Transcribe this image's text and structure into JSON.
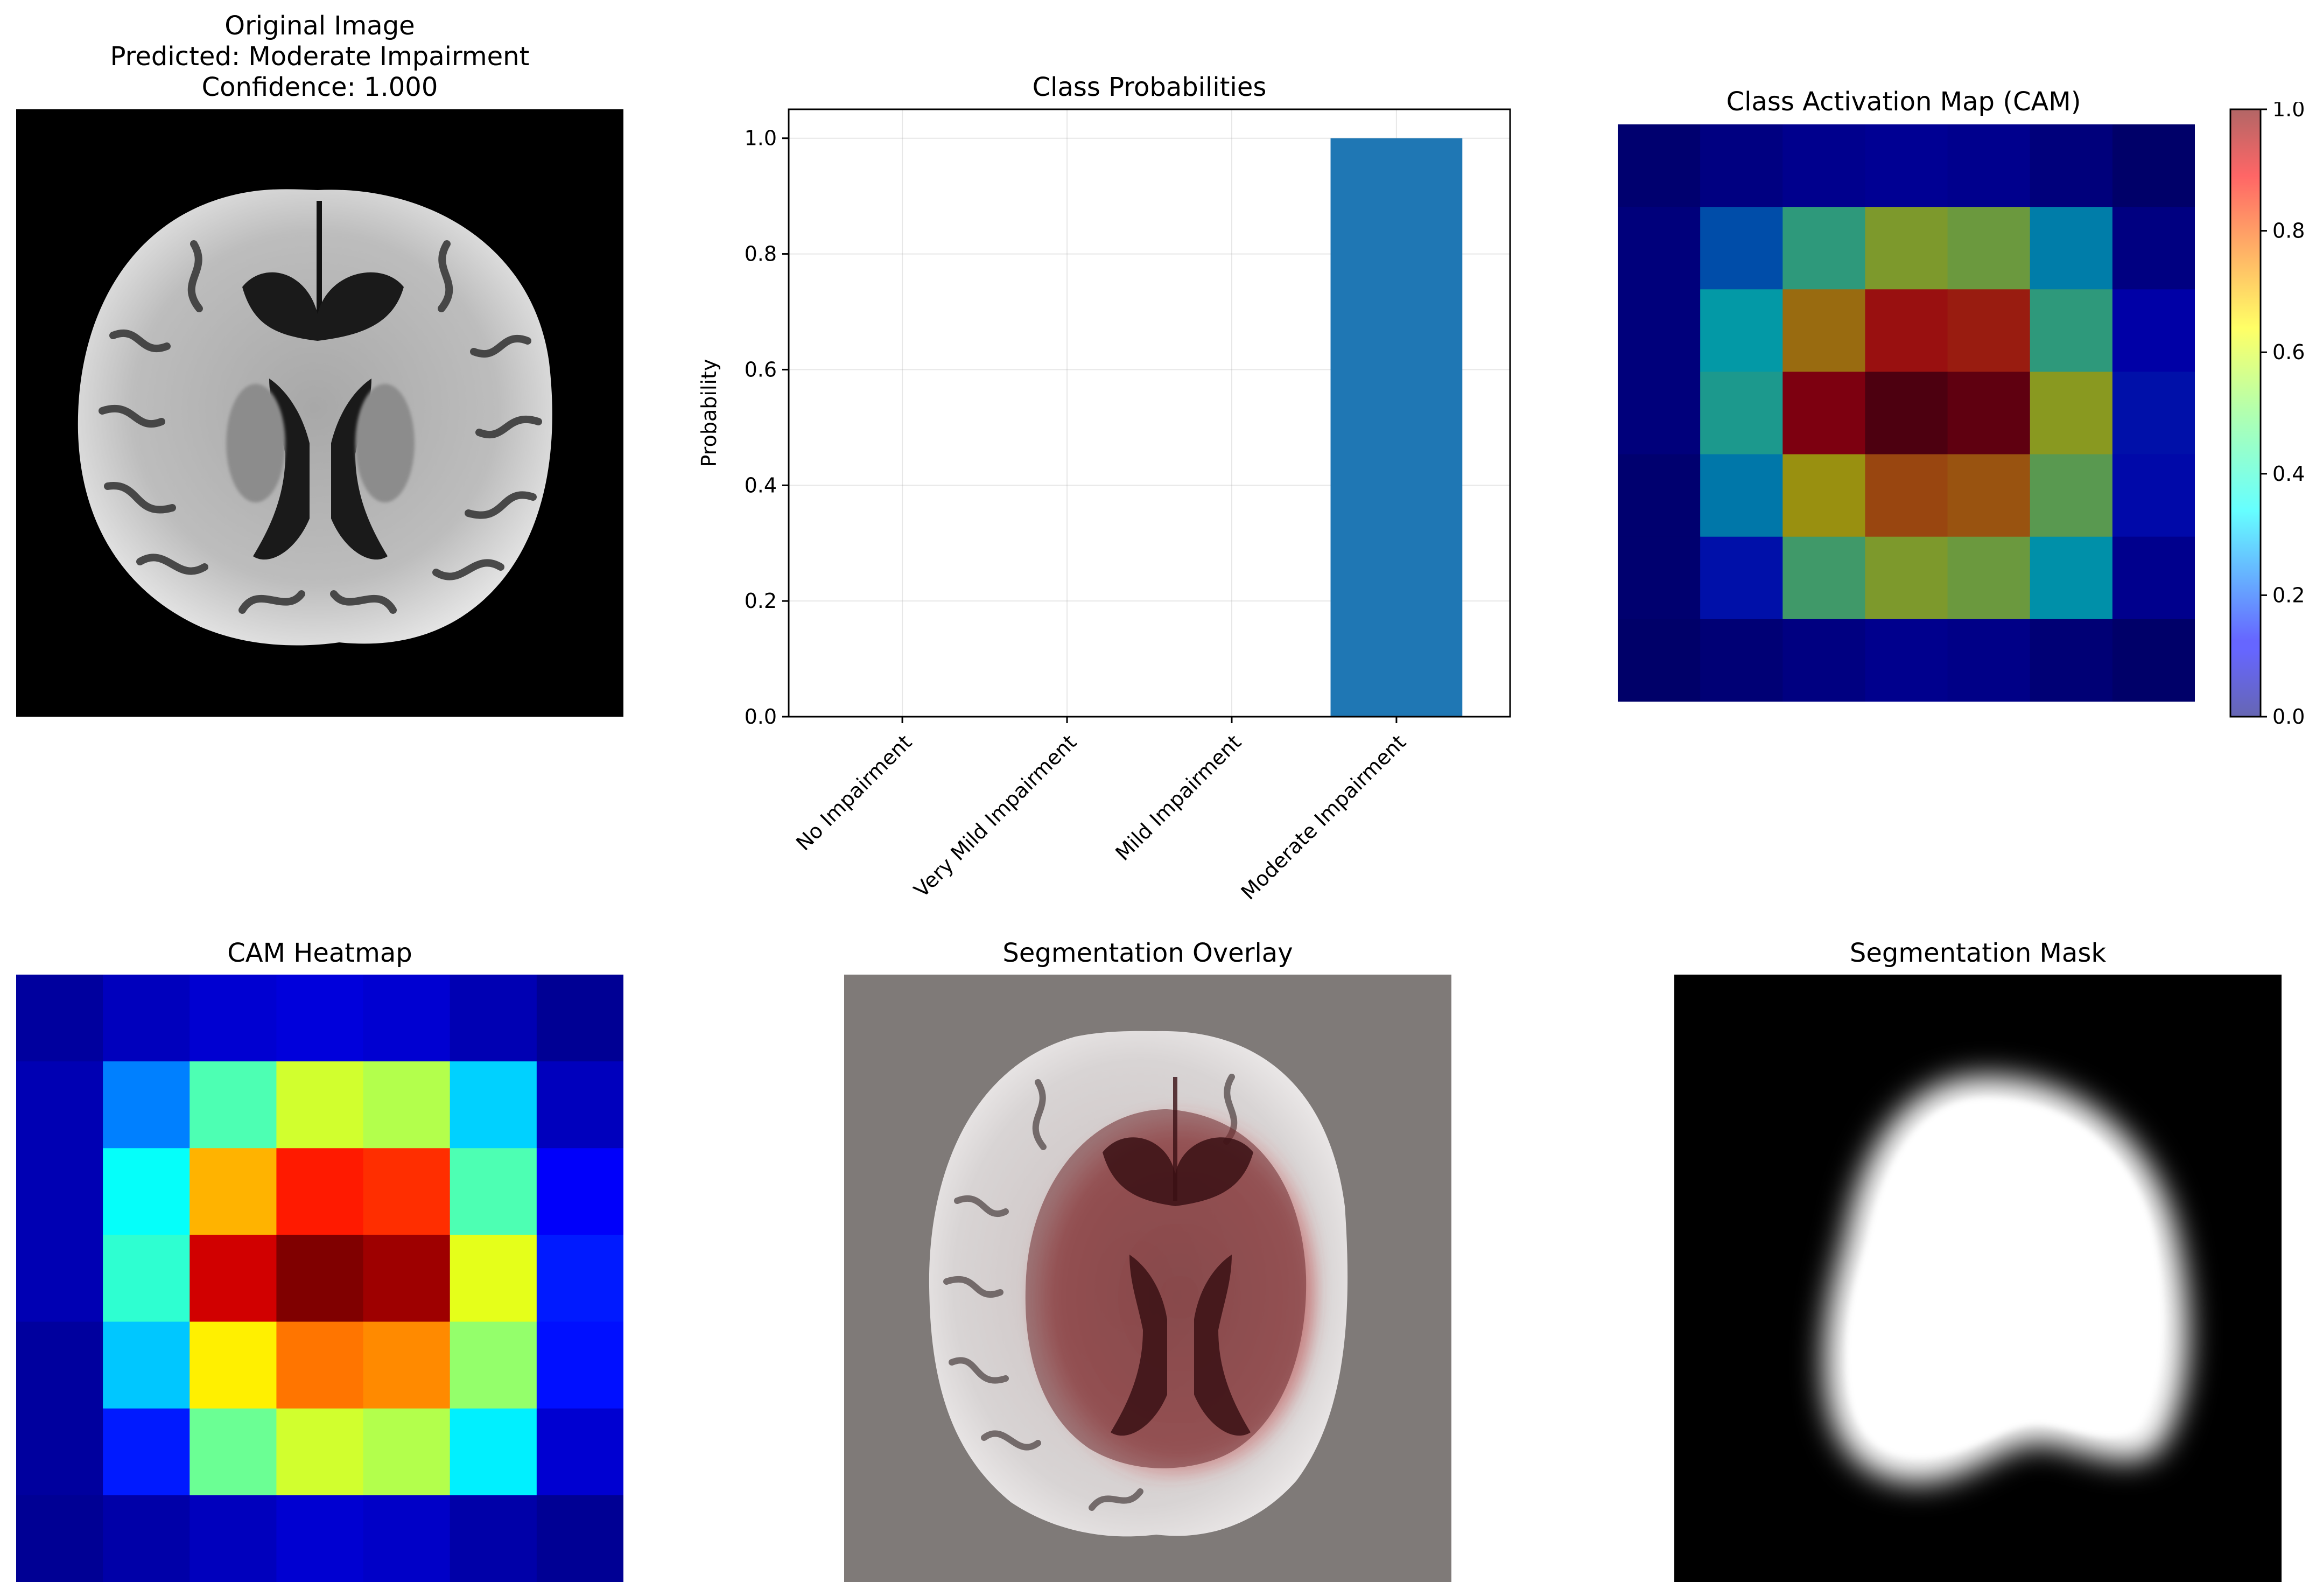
{
  "panels": {
    "original": {
      "title_lines": [
        "Original Image",
        "Predicted: Moderate Impairment",
        "Confidence: 1.000"
      ]
    },
    "probabilities": {
      "title": "Class Probabilities"
    },
    "cam": {
      "title": "Class Activation Map (CAM)"
    },
    "heatmap": {
      "title": "CAM Heatmap"
    },
    "overlay": {
      "title": "Segmentation Overlay"
    },
    "mask": {
      "title": "Segmentation Mask"
    }
  },
  "chart_data": [
    {
      "type": "bar",
      "title": "Class Probabilities",
      "xlabel": "",
      "ylabel": "Probability",
      "categories": [
        "No Impairment",
        "Very Mild Impairment",
        "Mild Impairment",
        "Moderate Impairment"
      ],
      "values": [
        0.0,
        0.0,
        0.0,
        1.0
      ],
      "ylim": [
        0,
        1.05
      ],
      "yticks": [
        "0.0",
        "0.2",
        "0.4",
        "0.6",
        "0.8",
        "1.0"
      ],
      "grid": true,
      "bar_color": "#1f77b4"
    },
    {
      "type": "heatmap",
      "title": "Class Activation Map (CAM)",
      "colormap": "jet",
      "alpha": 0.6,
      "range": [
        0,
        1
      ],
      "colorbar_ticks": [
        "0.0",
        "0.2",
        "0.4",
        "0.6",
        "0.8",
        "1.0"
      ],
      "values": [
        [
          0.03,
          0.06,
          0.08,
          0.09,
          0.08,
          0.05,
          0.02
        ],
        [
          0.05,
          0.25,
          0.45,
          0.58,
          0.55,
          0.33,
          0.06
        ],
        [
          0.05,
          0.38,
          0.7,
          0.85,
          0.83,
          0.45,
          0.12
        ],
        [
          0.05,
          0.42,
          0.92,
          1.0,
          0.97,
          0.6,
          0.15
        ],
        [
          0.03,
          0.32,
          0.64,
          0.76,
          0.74,
          0.52,
          0.14
        ],
        [
          0.03,
          0.15,
          0.48,
          0.58,
          0.55,
          0.36,
          0.08
        ],
        [
          0.02,
          0.04,
          0.06,
          0.08,
          0.07,
          0.04,
          0.02
        ]
      ]
    },
    {
      "type": "heatmap",
      "title": "CAM Heatmap",
      "colormap": "jet",
      "alpha": 1.0,
      "range": [
        0,
        1
      ],
      "values": [
        [
          0.03,
          0.06,
          0.08,
          0.09,
          0.08,
          0.05,
          0.02
        ],
        [
          0.05,
          0.25,
          0.45,
          0.58,
          0.55,
          0.33,
          0.06
        ],
        [
          0.05,
          0.38,
          0.7,
          0.85,
          0.83,
          0.45,
          0.12
        ],
        [
          0.05,
          0.42,
          0.92,
          1.0,
          0.97,
          0.6,
          0.15
        ],
        [
          0.03,
          0.32,
          0.64,
          0.76,
          0.74,
          0.52,
          0.14
        ],
        [
          0.03,
          0.15,
          0.48,
          0.58,
          0.55,
          0.36,
          0.08
        ],
        [
          0.02,
          0.04,
          0.06,
          0.08,
          0.07,
          0.04,
          0.02
        ]
      ]
    }
  ]
}
